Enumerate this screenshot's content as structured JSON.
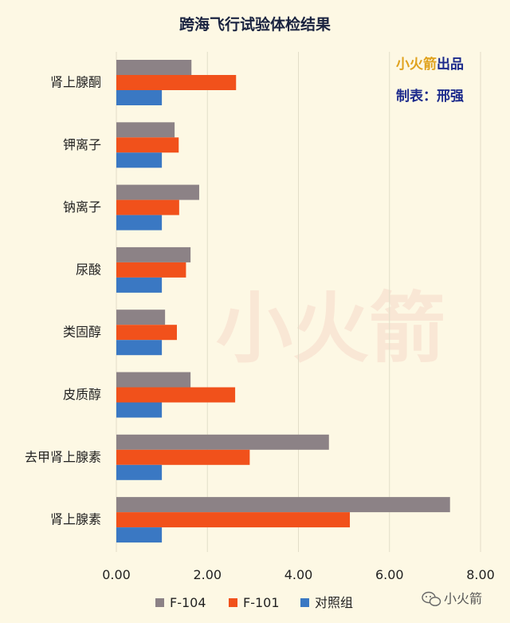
{
  "chart_data": {
    "type": "bar",
    "orientation": "horizontal",
    "title": "跨海飞行试验体检结果",
    "categories": [
      "肾上腺酮",
      "钾离子",
      "钠离子",
      "尿酸",
      "类固醇",
      "皮质醇",
      "去甲肾上腺素",
      "肾上腺素"
    ],
    "series": [
      {
        "name": "F-104",
        "color": "#8c8286",
        "values": [
          1.65,
          1.28,
          1.82,
          1.63,
          1.07,
          1.63,
          4.67,
          7.33
        ]
      },
      {
        "name": "F-101",
        "color": "#f1511b",
        "values": [
          2.63,
          1.37,
          1.38,
          1.53,
          1.33,
          2.61,
          2.93,
          5.13
        ]
      },
      {
        "name": "对照组",
        "color": "#3a78c3",
        "values": [
          1.0,
          1.0,
          1.0,
          1.0,
          1.0,
          1.0,
          1.0,
          1.0
        ]
      }
    ],
    "xlim": [
      0,
      8
    ],
    "xticks": [
      "0.00",
      "2.00",
      "4.00",
      "6.00",
      "8.00"
    ],
    "xlabel": "",
    "ylabel": "",
    "grid": true,
    "legend_position": "bottom"
  },
  "brand": {
    "line1_highlight": "小火箭",
    "line1_rest": "出品",
    "line2": "制表：邢强"
  },
  "watermark": "小火箭",
  "wechat_handle": "小火箭"
}
